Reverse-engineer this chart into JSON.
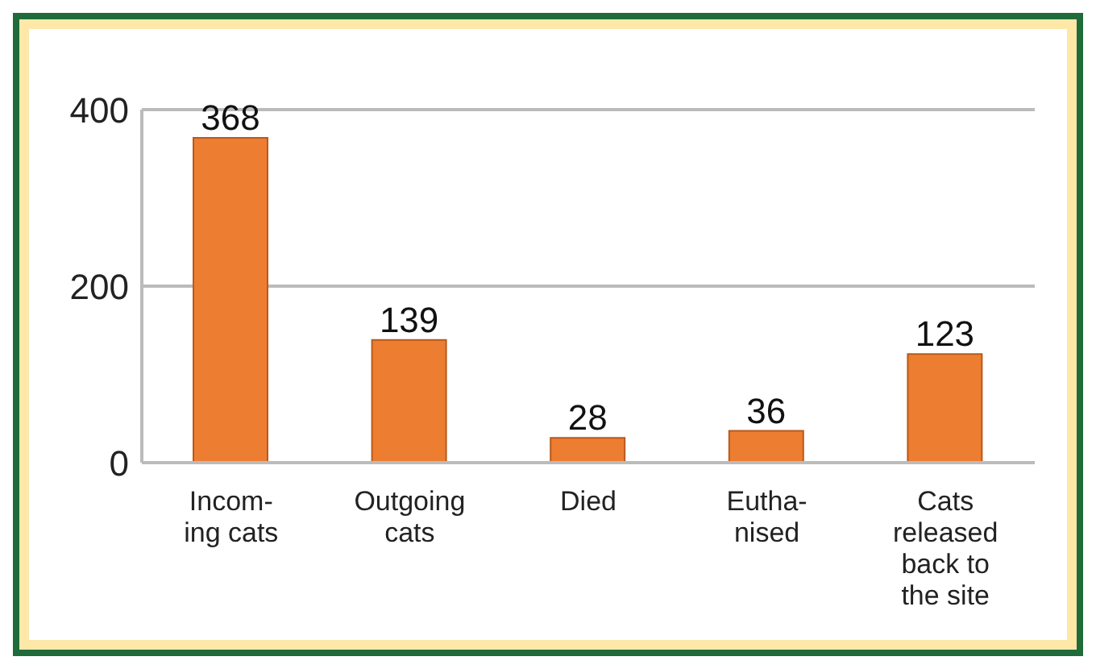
{
  "chart_data": {
    "type": "bar",
    "categories": [
      "Incom-\ning cats",
      "Outgoing\ncats",
      "Died",
      "Eutha-\nnised",
      "Cats\nreleased\nback to\nthe site"
    ],
    "values": [
      368,
      139,
      28,
      36,
      123
    ],
    "color": "#ed7d31",
    "ylim": [
      0,
      400
    ],
    "yticks": [
      0,
      200,
      400
    ],
    "grid": "y",
    "data_labels": true
  }
}
